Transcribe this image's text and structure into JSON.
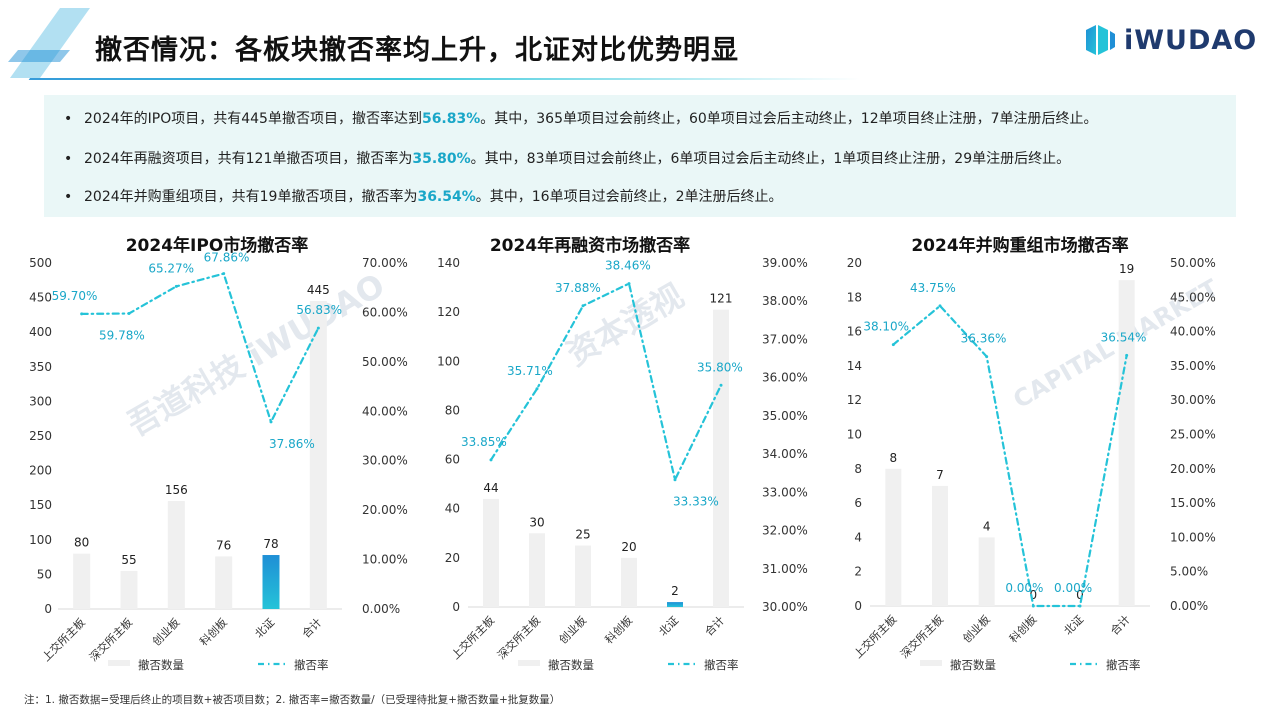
{
  "title": "撤否情况：各板块撤否率均上升，北证对比优势明显",
  "logo": {
    "text": "iWUDAO",
    "icon": "wudao-logo-icon"
  },
  "summary": [
    {
      "pre": "2024年的IPO项目，共有445单撤否项目，撤否率达到",
      "hl": "56.83%",
      "post": "。其中，365单项目过会前终止，60单项目过会后主动终止，12单项目终止注册，7单注册后终止。"
    },
    {
      "pre": "2024年再融资项目，共有121单撤否项目，撤否率为",
      "hl": "35.80%",
      "post": "。其中，83单项目过会前终止，6单项目过会后主动终止，1单项目终止注册，29单注册后终止。"
    },
    {
      "pre": "2024年并购重组项目，共有19单撤否项目，撤否率为",
      "hl": "36.54%",
      "post": "。其中，16单项目过会前终止，2单注册后终止。"
    }
  ],
  "footnote": "注：1. 撤否数据=受理后终止的项目数+被否项目数；2. 撤否率=撤否数量/（已受理待批复+撤否数量+批复数量）",
  "watermark": {
    "lines": [
      "吾道科技",
      "iWUDAO",
      "资本透视",
      "CAPITAL MARKET"
    ]
  },
  "colors": {
    "bar": "#f0f0f0",
    "highlight_bar_top": "#1f8fd6",
    "highlight_bar_bottom": "#25c3d8",
    "line": "#25c3d8",
    "label": "#1aa7c8",
    "axis_text": "#333333"
  },
  "chart_data": [
    {
      "type": "bar",
      "title": "2024年IPO市场撤否率",
      "categories": [
        "上交所主板",
        "深交所主板",
        "创业板",
        "科创板",
        "北证",
        "合计"
      ],
      "series": [
        {
          "name": "撤否数量",
          "type": "bar",
          "values": [
            80,
            55,
            156,
            76,
            78,
            445
          ],
          "labels": [
            "80",
            "55",
            "156",
            "76",
            "78",
            "445"
          ]
        },
        {
          "name": "撤否率",
          "type": "line",
          "values": [
            59.7,
            59.78,
            65.27,
            67.86,
            37.86,
            56.83
          ],
          "labels": [
            "59.70%",
            "59.78%",
            "65.27%",
            "67.86%",
            "37.86%",
            "56.83%"
          ]
        }
      ],
      "highlight_index": 4,
      "ylim": [
        0,
        500
      ],
      "y_ticks": [
        "0",
        "50",
        "100",
        "150",
        "200",
        "250",
        "300",
        "350",
        "400",
        "450",
        "500"
      ],
      "y2lim": [
        0,
        70
      ],
      "y2_ticks": [
        "0.00%",
        "10.00%",
        "20.00%",
        "30.00%",
        "40.00%",
        "50.00%",
        "60.00%",
        "70.00%"
      ],
      "legend": {
        "position": "bottom",
        "bar": "撤否数量",
        "line": "撤否率"
      }
    },
    {
      "type": "bar",
      "title": "2024年再融资市场撤否率",
      "categories": [
        "上交所主板",
        "深交所主板",
        "创业板",
        "科创板",
        "北证",
        "合计"
      ],
      "series": [
        {
          "name": "撤否数量",
          "type": "bar",
          "values": [
            44,
            30,
            25,
            20,
            2,
            121
          ],
          "labels": [
            "44",
            "30",
            "25",
            "20",
            "2",
            "121"
          ]
        },
        {
          "name": "撤否率",
          "type": "line",
          "values": [
            33.85,
            35.71,
            37.88,
            38.46,
            33.33,
            35.8
          ],
          "labels": [
            "33.85%",
            "35.71%",
            "37.88%",
            "38.46%",
            "33.33%",
            "35.80%"
          ]
        }
      ],
      "highlight_index": 4,
      "ylim": [
        0,
        140
      ],
      "y_ticks": [
        "0",
        "20",
        "40",
        "60",
        "80",
        "100",
        "120",
        "140"
      ],
      "y2lim": [
        30,
        39
      ],
      "y2_ticks": [
        "30.00%",
        "31.00%",
        "32.00%",
        "33.00%",
        "34.00%",
        "35.00%",
        "36.00%",
        "37.00%",
        "38.00%",
        "39.00%"
      ],
      "legend": {
        "position": "bottom",
        "bar": "撤否数量",
        "line": "撤否率"
      }
    },
    {
      "type": "bar",
      "title": "2024年并购重组市场撤否率",
      "categories": [
        "上交所主板",
        "深交所主板",
        "创业板",
        "科创板",
        "北证",
        "合计"
      ],
      "series": [
        {
          "name": "撤否数量",
          "type": "bar",
          "values": [
            8,
            7,
            4,
            0,
            0,
            19
          ],
          "labels": [
            "8",
            "7",
            "4",
            "0",
            "0",
            "19"
          ]
        },
        {
          "name": "撤否率",
          "type": "line",
          "values": [
            38.1,
            43.75,
            36.36,
            0.0,
            0.0,
            36.54
          ],
          "labels": [
            "38.10%",
            "43.75%",
            "36.36%",
            "0.00%",
            "0.00%",
            "36.54%"
          ]
        }
      ],
      "highlight_index": -1,
      "ylim": [
        0,
        20
      ],
      "y_ticks": [
        "0",
        "2",
        "4",
        "6",
        "8",
        "10",
        "12",
        "14",
        "16",
        "18",
        "20"
      ],
      "y2lim": [
        0,
        50
      ],
      "y2_ticks": [
        "0.00%",
        "5.00%",
        "10.00%",
        "15.00%",
        "20.00%",
        "25.00%",
        "30.00%",
        "35.00%",
        "40.00%",
        "45.00%",
        "50.00%"
      ],
      "legend": {
        "position": "bottom",
        "bar": "撤否数量",
        "line": "撤否率"
      }
    }
  ]
}
